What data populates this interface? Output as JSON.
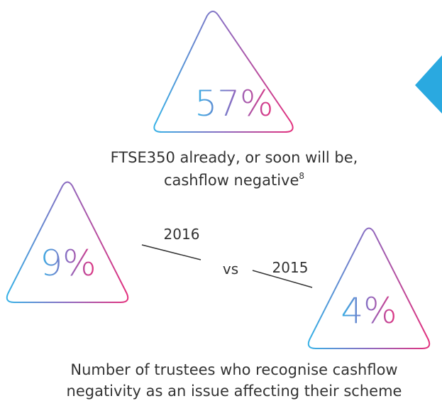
{
  "top_stat": {
    "value": "57%",
    "caption_line1": "FTSE350 already, or soon will be,",
    "caption_line2": "cashflow negative",
    "footnote": "8"
  },
  "comparison": {
    "left": {
      "value": "9%",
      "year": "2016"
    },
    "separator": "vs",
    "right": {
      "value": "4%",
      "year": "2015"
    },
    "caption_line1": "Number of trustees who recognise cashflow",
    "caption_line2": "negativity as an issue affecting their scheme"
  }
}
